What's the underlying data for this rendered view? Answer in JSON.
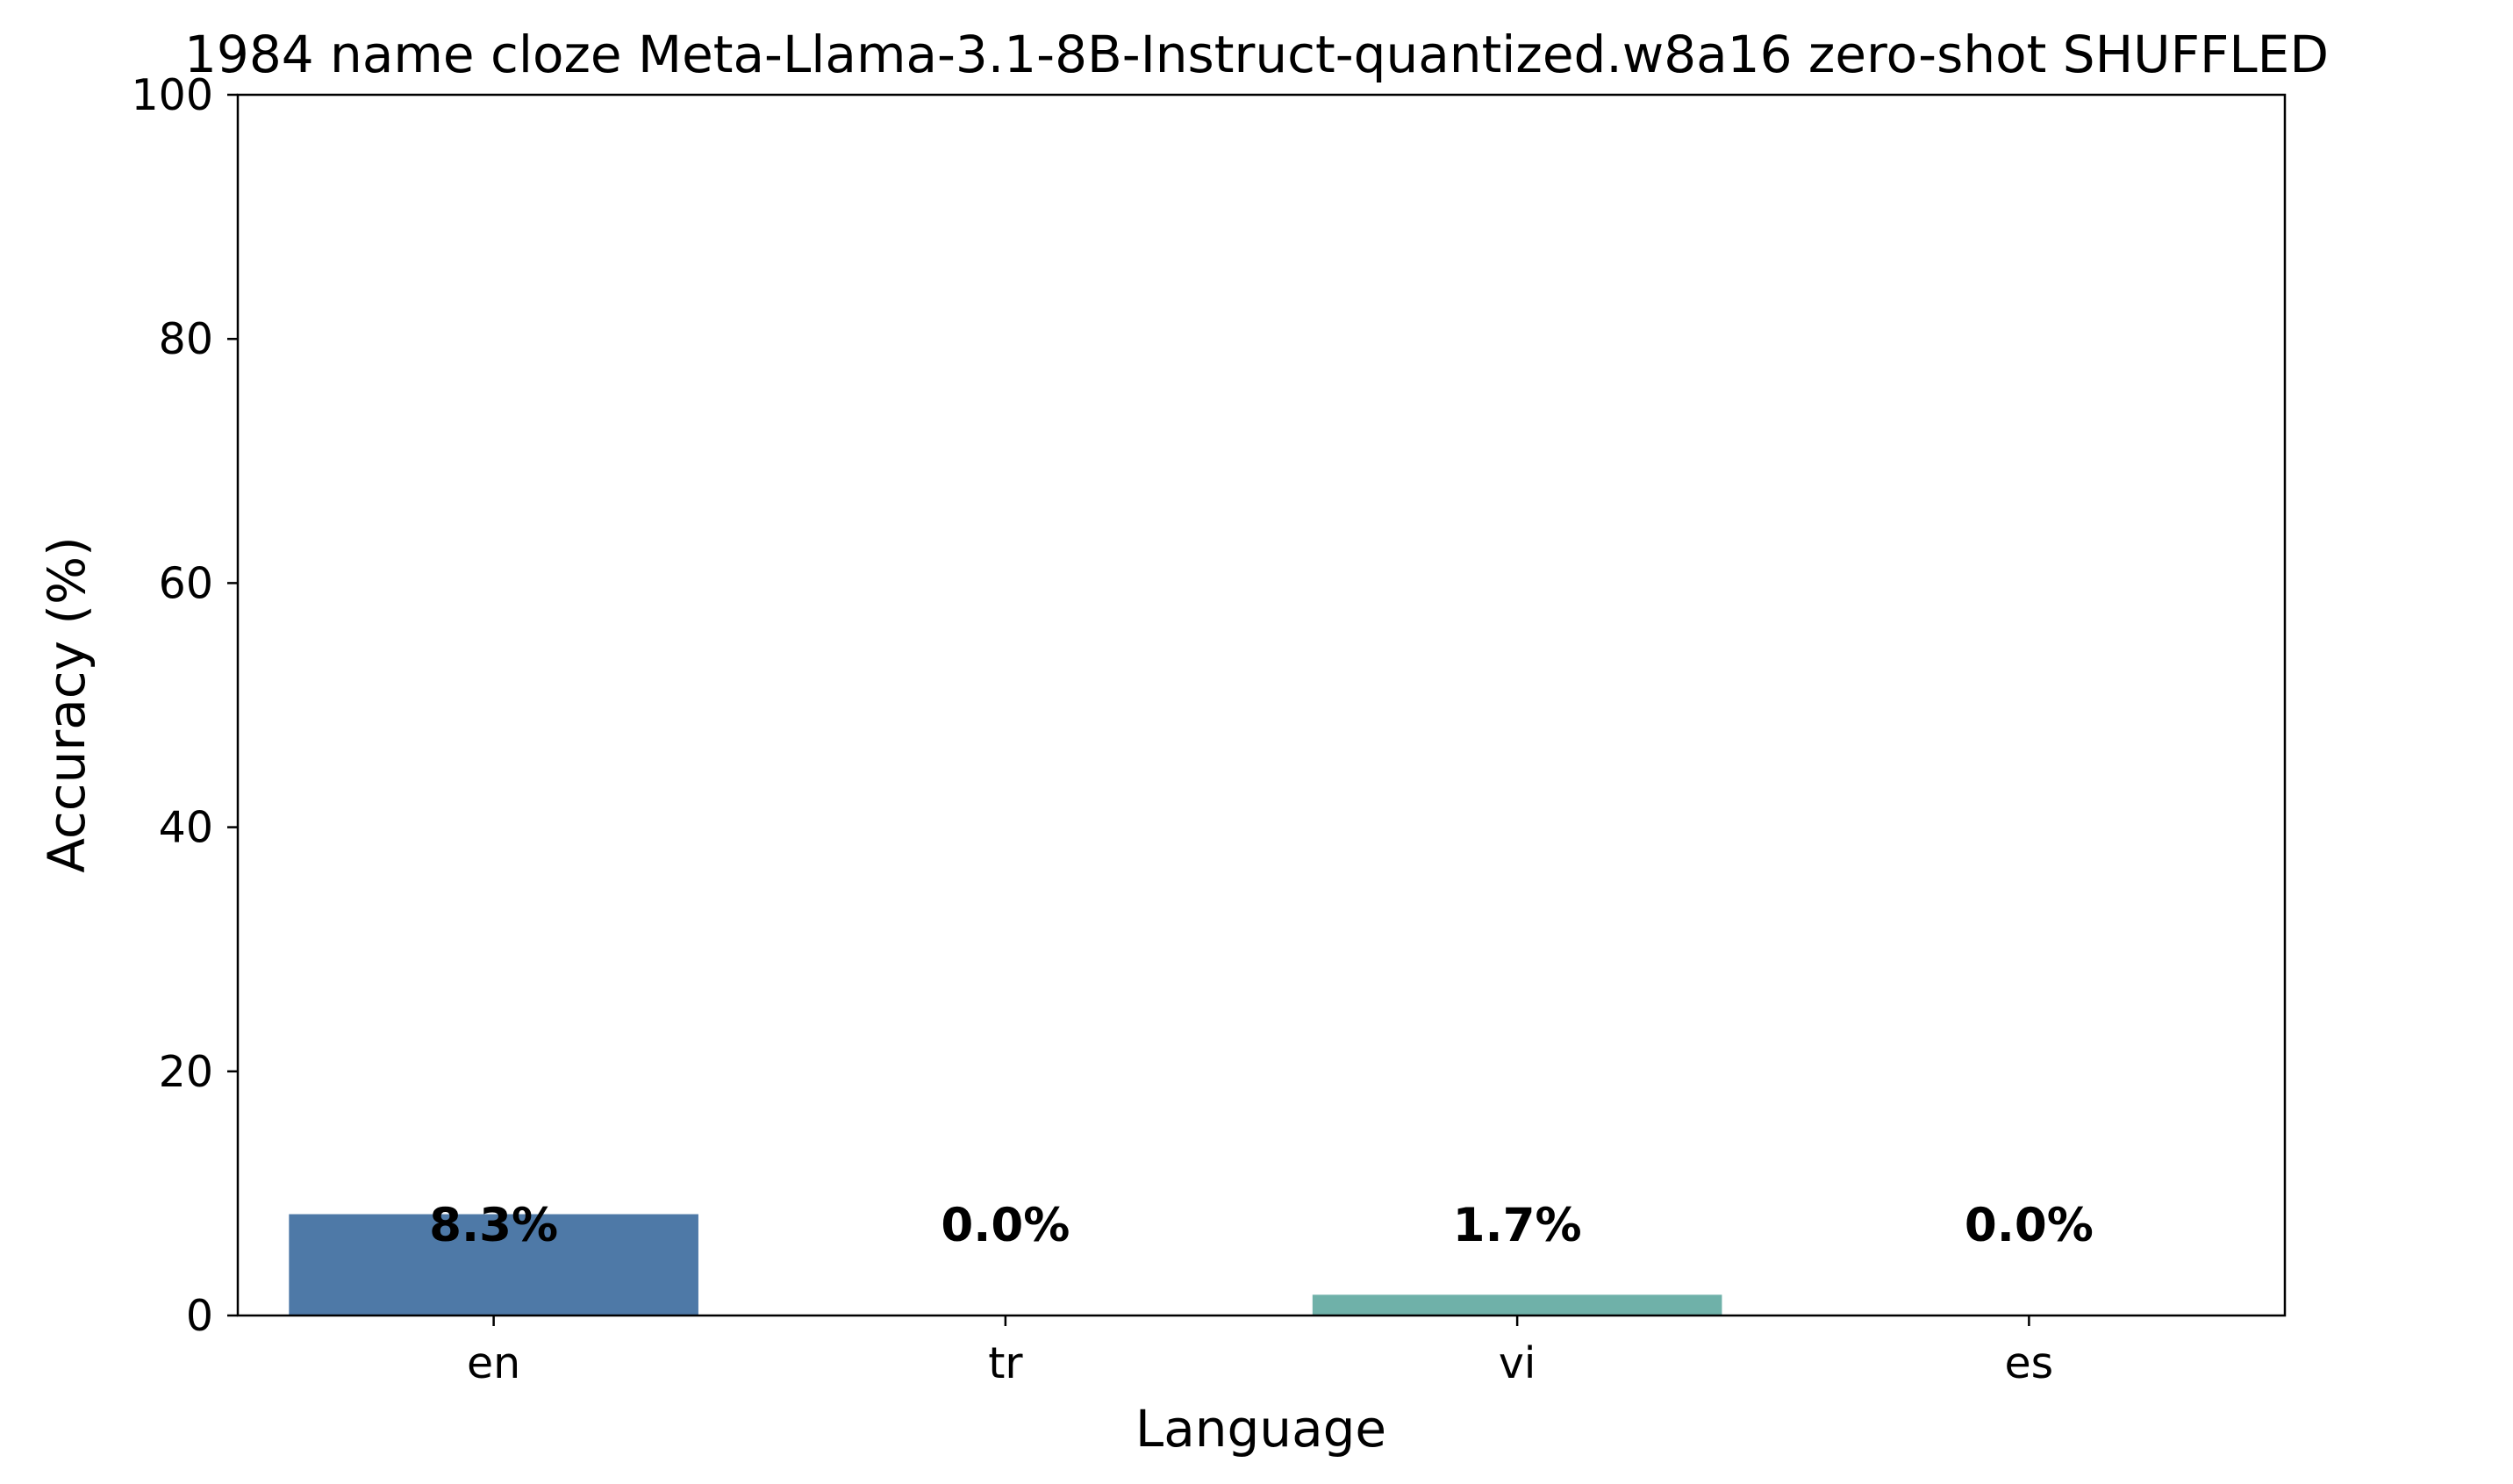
{
  "chart_data": {
    "type": "bar",
    "title": "1984 name cloze Meta-Llama-3.1-8B-Instruct-quantized.w8a16 zero-shot SHUFFLED",
    "xlabel": "Language",
    "ylabel": "Accuracy (%)",
    "categories": [
      "en",
      "tr",
      "vi",
      "es"
    ],
    "values": [
      8.3,
      0.0,
      1.7,
      0.0
    ],
    "value_labels": [
      "8.3%",
      "0.0%",
      "1.7%",
      "0.0%"
    ],
    "bar_colors": [
      "#4e79a7",
      "#59a89c",
      "#6fb1a9",
      "#7fbfb0"
    ],
    "ylim": [
      0,
      100
    ],
    "yticks": [
      0,
      20,
      40,
      60,
      80,
      100
    ],
    "grid": false,
    "legend": "none"
  }
}
